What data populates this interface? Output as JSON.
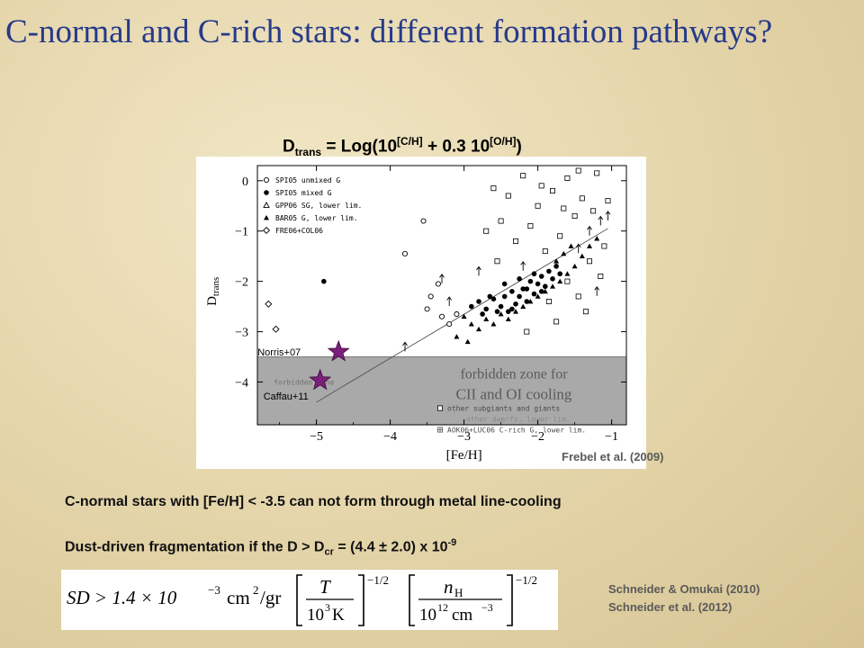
{
  "slide": {
    "title": "C-normal and C-rich stars: different formation pathways?",
    "formula": {
      "lhs_main": "D",
      "lhs_sub": "trans",
      "eq_start": " = Log(10",
      "sup1": "[C/H]",
      "mid": " + 0.3 10",
      "sup2": "[O/H]",
      "end": ")"
    },
    "credit": "Frebel et al. (2009)",
    "statement1": "C-normal stars with [Fe/H] < -3.5 can not form through metal line-cooling",
    "statement2": {
      "text": "Dust-driven fragmentation if the D > D",
      "sub": "cr",
      "value": " = (4.4 ± 2.0) x 10",
      "exp": "-9"
    },
    "equation": {
      "lhs": "SD > 1.4 × 10",
      "coef_exp": "−3",
      "units": "cm",
      "units_exp": "2",
      "units_tail": "/gr",
      "T": "T",
      "T_den": "10",
      "T_den_exp": "3",
      "T_unit": "K",
      "n": "n",
      "n_sub": "H",
      "n_den": "10",
      "n_den_exp": "12",
      "n_unit": "cm",
      "n_unit_exp": "−3",
      "power": "−1/2"
    },
    "refs": [
      "Schneider & Omukai (2010)",
      "Schneider et al. (2012)"
    ]
  },
  "chart_data": {
    "type": "scatter",
    "xlabel": "[Fe/H]",
    "ylabel": "D_trans",
    "xlim": [
      -5.8,
      -0.8
    ],
    "ylim": [
      -4.85,
      0.3
    ],
    "x_ticks": [
      "−5",
      "−4",
      "−3",
      "−2",
      "−1"
    ],
    "x_tick_values": [
      -5,
      -4,
      -3,
      -2,
      -1
    ],
    "y_ticks": [
      "0",
      "−1",
      "−2",
      "−3",
      "−4"
    ],
    "y_tick_values": [
      0,
      -1,
      -2,
      -3,
      -4
    ],
    "forbidden_threshold": -3.5,
    "forbidden_text": [
      "forbidden zone for",
      "CII and OI cooling"
    ],
    "forbidden_small_label": "forbidden zone",
    "legend": [
      {
        "symbol": "open-circle",
        "label": "SPI05 unmixed G"
      },
      {
        "symbol": "filled-circle",
        "label": "SPI05 mixed G"
      },
      {
        "symbol": "open-triangle",
        "label": "GPP06 SG, lower lim."
      },
      {
        "symbol": "filled-triangle",
        "label": "BAR05 G, lower lim."
      },
      {
        "symbol": "open-diamond",
        "label": "FRE06+COL06"
      }
    ],
    "legend_lower": [
      {
        "symbol": "open-square",
        "label": "other subgiants and giants"
      },
      {
        "symbol": "boxed-plus",
        "label": "AOK06+LUC06 C-rich G, lower lim."
      }
    ],
    "legend_lower_mid": "other dwarfs, lower lim.",
    "trend_line": [
      [
        -5.0,
        -4.4
      ],
      [
        -1.05,
        -0.95
      ]
    ],
    "stars": [
      {
        "label": "Norris+07",
        "x": -4.7,
        "y": -3.4,
        "color": "#7b1f7a"
      },
      {
        "label": "Caffau+11",
        "x": -4.95,
        "y": -3.97,
        "color": "#7b1f7a"
      }
    ],
    "open_diamond": [
      [
        -5.55,
        -2.95
      ],
      [
        -5.65,
        -2.45
      ]
    ],
    "filled_circle_isolated": [
      [
        -4.9,
        -2.0
      ]
    ],
    "open_circle": [
      [
        -3.55,
        -0.8
      ],
      [
        -3.45,
        -2.3
      ],
      [
        -3.3,
        -2.7
      ],
      [
        -3.2,
        -2.85
      ],
      [
        -3.1,
        -2.65
      ],
      [
        -3.5,
        -2.55
      ],
      [
        -3.35,
        -2.05
      ],
      [
        -3.8,
        -1.45
      ]
    ],
    "filled_circle": [
      [
        -2.8,
        -2.4
      ],
      [
        -2.7,
        -2.55
      ],
      [
        -2.6,
        -2.35
      ],
      [
        -2.5,
        -2.5
      ],
      [
        -2.45,
        -2.3
      ],
      [
        -2.4,
        -2.6
      ],
      [
        -2.35,
        -2.2
      ],
      [
        -2.3,
        -2.45
      ],
      [
        -2.25,
        -2.3
      ],
      [
        -2.2,
        -2.15
      ],
      [
        -2.15,
        -2.4
      ],
      [
        -2.1,
        -2.0
      ],
      [
        -2.05,
        -2.25
      ],
      [
        -2.0,
        -2.05
      ],
      [
        -1.95,
        -1.9
      ],
      [
        -1.9,
        -2.1
      ],
      [
        -1.85,
        -1.8
      ],
      [
        -1.8,
        -1.95
      ],
      [
        -1.75,
        -1.7
      ],
      [
        -1.7,
        -1.85
      ],
      [
        -2.55,
        -2.6
      ],
      [
        -2.65,
        -2.3
      ],
      [
        -2.75,
        -2.65
      ],
      [
        -2.9,
        -2.5
      ],
      [
        -2.35,
        -2.55
      ],
      [
        -2.15,
        -2.15
      ],
      [
        -1.95,
        -2.2
      ],
      [
        -2.45,
        -2.05
      ],
      [
        -2.25,
        -1.95
      ],
      [
        -2.05,
        -1.85
      ]
    ],
    "filled_triangle": [
      [
        -3.0,
        -2.7
      ],
      [
        -2.9,
        -2.85
      ],
      [
        -2.8,
        -2.95
      ],
      [
        -2.7,
        -2.75
      ],
      [
        -2.6,
        -2.85
      ],
      [
        -2.5,
        -2.65
      ],
      [
        -2.4,
        -2.75
      ],
      [
        -2.3,
        -2.6
      ],
      [
        -2.2,
        -2.5
      ],
      [
        -2.1,
        -2.4
      ],
      [
        -2.0,
        -2.3
      ],
      [
        -1.9,
        -2.2
      ],
      [
        -1.8,
        -2.1
      ],
      [
        -1.7,
        -2.0
      ],
      [
        -1.6,
        -1.85
      ],
      [
        -1.5,
        -1.7
      ],
      [
        -1.4,
        -1.5
      ],
      [
        -1.3,
        -1.3
      ],
      [
        -1.2,
        -1.15
      ],
      [
        -1.75,
        -1.6
      ],
      [
        -1.65,
        -1.45
      ],
      [
        -1.55,
        -1.3
      ],
      [
        -3.1,
        -3.1
      ],
      [
        -2.95,
        -3.2
      ]
    ],
    "open_square": [
      [
        -2.6,
        -0.15
      ],
      [
        -2.4,
        -0.3
      ],
      [
        -2.2,
        0.1
      ],
      [
        -2.0,
        -0.5
      ],
      [
        -1.8,
        -0.2
      ],
      [
        -1.6,
        0.05
      ],
      [
        -1.4,
        -0.35
      ],
      [
        -1.2,
        0.15
      ],
      [
        -2.5,
        -0.8
      ],
      [
        -2.3,
        -1.2
      ],
      [
        -2.1,
        -0.9
      ],
      [
        -1.9,
        -1.4
      ],
      [
        -1.7,
        -1.1
      ],
      [
        -1.5,
        -0.7
      ],
      [
        -1.3,
        -1.6
      ],
      [
        -1.1,
        -1.3
      ],
      [
        -2.7,
        -1.0
      ],
      [
        -1.85,
        -2.4
      ],
      [
        -1.6,
        -2.0
      ],
      [
        -1.35,
        -2.6
      ],
      [
        -1.15,
        -1.9
      ],
      [
        -2.15,
        -3.0
      ],
      [
        -1.75,
        -2.8
      ],
      [
        -1.45,
        -2.3
      ],
      [
        -1.25,
        -0.6
      ],
      [
        -1.05,
        -0.4
      ],
      [
        -2.55,
        -1.6
      ],
      [
        -1.95,
        -0.1
      ],
      [
        -1.65,
        -0.55
      ],
      [
        -1.45,
        0.2
      ]
    ],
    "upper_arrows": [
      [
        -3.8,
        -3.3
      ],
      [
        -3.3,
        -1.95
      ],
      [
        -3.2,
        -2.4
      ],
      [
        -2.8,
        -1.8
      ],
      [
        -2.2,
        -1.7
      ],
      [
        -1.45,
        -1.35
      ],
      [
        -1.3,
        -1.0
      ],
      [
        -1.15,
        -0.8
      ],
      [
        -1.05,
        -0.7
      ],
      [
        -1.2,
        -2.2
      ]
    ]
  }
}
